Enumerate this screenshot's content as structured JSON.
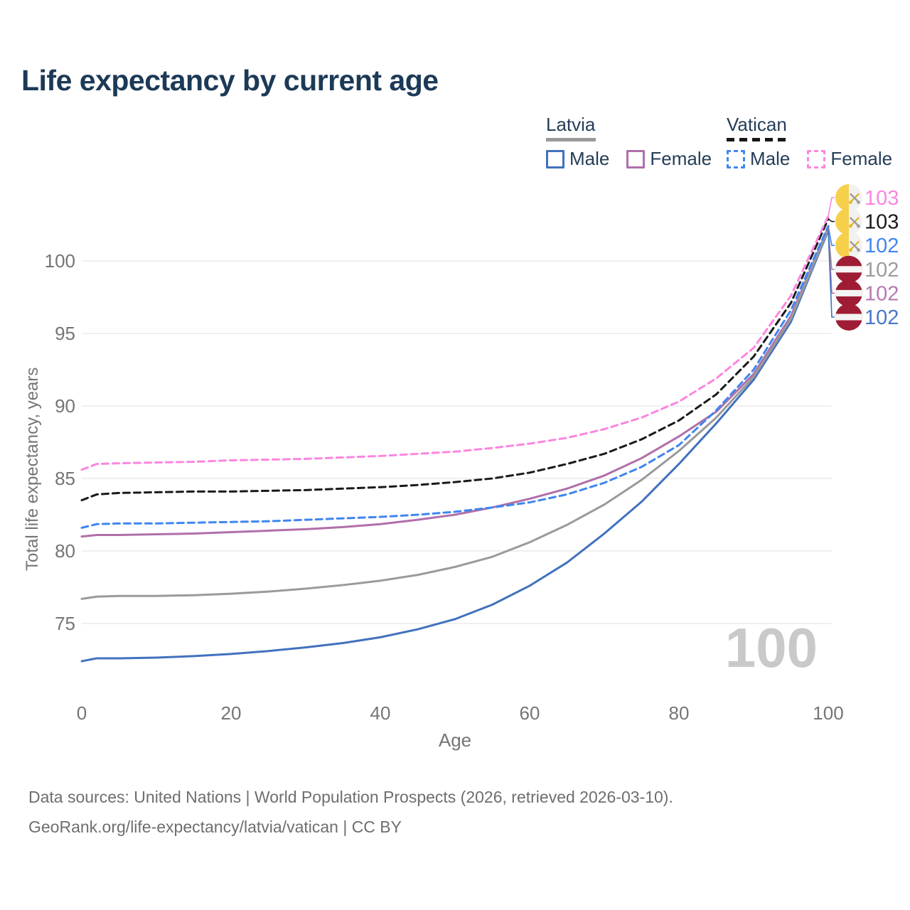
{
  "title": "Life expectancy by current age",
  "legend": {
    "groups": [
      {
        "label": "Latvia",
        "style": "solid",
        "underline_color": "#999999",
        "items": [
          {
            "label": "Male",
            "color": "#4271be",
            "dash": false
          },
          {
            "label": "Female",
            "color": "#b06fa9",
            "dash": false
          }
        ]
      },
      {
        "label": "Vatican",
        "style": "dashed",
        "underline_color": "#161616",
        "items": [
          {
            "label": "Male",
            "color": "#3f86f0",
            "dash": true
          },
          {
            "label": "Female",
            "color": "#fb86e0",
            "dash": true
          }
        ]
      }
    ]
  },
  "chart_data": {
    "type": "line",
    "title": "Life expectancy by current age",
    "xlabel": "Age",
    "ylabel": "Total life expectancy, years",
    "x_ticks": [
      0,
      20,
      40,
      60,
      80,
      100
    ],
    "y_ticks": [
      75,
      80,
      85,
      90,
      95,
      100
    ],
    "xlim": [
      0,
      100
    ],
    "ylim": [
      71.5,
      103.5
    ],
    "grid": "horizontal",
    "legend_position": "top-right",
    "x": [
      0,
      2,
      5,
      10,
      15,
      20,
      25,
      30,
      35,
      40,
      45,
      50,
      55,
      60,
      65,
      70,
      75,
      80,
      85,
      90,
      95,
      100
    ],
    "series": [
      {
        "id": "vatican-female",
        "name": "Vatican Female",
        "country": "Vatican",
        "sex": "Female",
        "color": "#fb86e0",
        "label_color": "#fb86e0",
        "dash": true,
        "flag": "vatican",
        "end_label": "103",
        "values": [
          85.6,
          86.0,
          86.05,
          86.1,
          86.15,
          86.25,
          86.3,
          86.35,
          86.45,
          86.55,
          86.7,
          86.85,
          87.1,
          87.4,
          87.8,
          88.4,
          89.2,
          90.3,
          91.9,
          94.0,
          97.6,
          103.1
        ]
      },
      {
        "id": "vatican-both",
        "name": "Vatican",
        "country": "Vatican",
        "sex": "Both",
        "color": "#1a1a1a",
        "label_color": "#1a1a1a",
        "dash": true,
        "flag": "vatican",
        "end_label": "103",
        "values": [
          83.5,
          83.9,
          84.0,
          84.05,
          84.1,
          84.1,
          84.15,
          84.2,
          84.3,
          84.4,
          84.55,
          84.75,
          85.0,
          85.4,
          86.0,
          86.7,
          87.7,
          89.0,
          90.8,
          93.4,
          97.1,
          102.9
        ]
      },
      {
        "id": "vatican-male",
        "name": "Vatican Male",
        "country": "Vatican",
        "sex": "Male",
        "color": "#3f86f0",
        "label_color": "#4286f0",
        "dash": true,
        "flag": "vatican",
        "end_label": "102",
        "values": [
          81.6,
          81.85,
          81.9,
          81.9,
          81.95,
          82.0,
          82.05,
          82.15,
          82.25,
          82.35,
          82.5,
          82.7,
          83.0,
          83.35,
          83.9,
          84.7,
          85.8,
          87.3,
          89.7,
          92.5,
          96.6,
          102.4
        ]
      },
      {
        "id": "latvia-both",
        "name": "Latvia",
        "country": "Latvia",
        "sex": "Both",
        "color": "#9a9a9a",
        "label_color": "#9c9c9c",
        "dash": false,
        "flag": "latvia",
        "end_label": "102",
        "values": [
          76.7,
          76.85,
          76.9,
          76.9,
          76.95,
          77.05,
          77.2,
          77.4,
          77.65,
          77.95,
          78.35,
          78.9,
          79.6,
          80.6,
          81.8,
          83.2,
          84.9,
          86.9,
          89.2,
          92.0,
          96.0,
          102.2
        ]
      },
      {
        "id": "latvia-female",
        "name": "Latvia Female",
        "country": "Latvia",
        "sex": "Female",
        "color": "#b06fa9",
        "label_color": "#b679b1",
        "dash": false,
        "flag": "latvia",
        "end_label": "102",
        "values": [
          81.0,
          81.1,
          81.1,
          81.15,
          81.2,
          81.3,
          81.4,
          81.5,
          81.65,
          81.85,
          82.15,
          82.5,
          83.0,
          83.6,
          84.3,
          85.2,
          86.4,
          87.9,
          89.6,
          92.2,
          96.2,
          102.3
        ]
      },
      {
        "id": "latvia-male",
        "name": "Latvia Male",
        "country": "Latvia",
        "sex": "Male",
        "color": "#4271be",
        "label_color": "#4a77c8",
        "dash": false,
        "flag": "latvia",
        "end_label": "102",
        "values": [
          72.4,
          72.6,
          72.6,
          72.65,
          72.75,
          72.9,
          73.1,
          73.35,
          73.65,
          74.05,
          74.6,
          75.3,
          76.3,
          77.6,
          79.2,
          81.2,
          83.4,
          86.0,
          88.8,
          91.8,
          95.8,
          102.1
        ]
      }
    ],
    "flag_colors": {
      "vatican": [
        "#f6d04b",
        "#f1f1f1"
      ],
      "latvia": [
        "#9e1c34",
        "#f4f4f4"
      ]
    }
  },
  "watermark": {
    "value": "100"
  },
  "footer": {
    "line1": "Data sources: United Nations | World Population Prospects (2026, retrieved 2026-03-10).",
    "line2": "GeoRank.org/life-expectancy/latvia/vatican | CC BY"
  }
}
